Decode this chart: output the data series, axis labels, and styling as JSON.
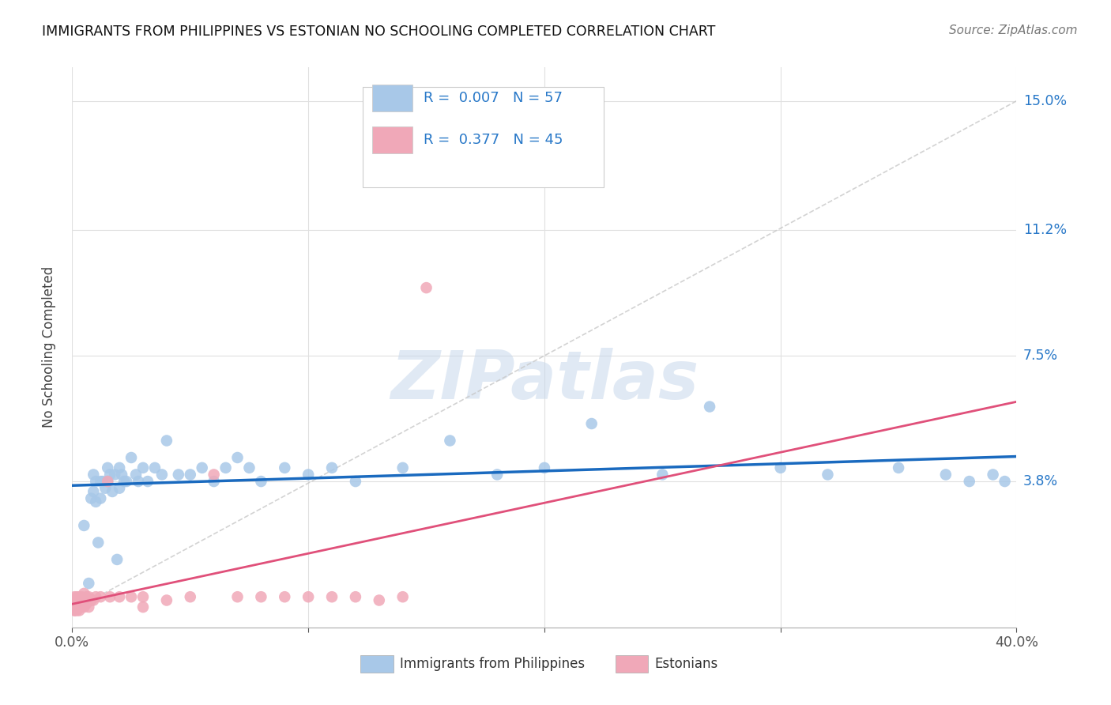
{
  "title": "IMMIGRANTS FROM PHILIPPINES VS ESTONIAN NO SCHOOLING COMPLETED CORRELATION CHART",
  "source": "Source: ZipAtlas.com",
  "ylabel": "No Schooling Completed",
  "xlim": [
    0.0,
    0.4
  ],
  "ylim": [
    -0.005,
    0.16
  ],
  "ytick_values": [
    0.038,
    0.075,
    0.112,
    0.15
  ],
  "ytick_labels": [
    "3.8%",
    "7.5%",
    "11.2%",
    "15.0%"
  ],
  "blue_R": "0.007",
  "blue_N": "57",
  "pink_R": "0.377",
  "pink_N": "45",
  "blue_dot_color": "#a8c8e8",
  "pink_dot_color": "#f0a8b8",
  "blue_line_color": "#1a6abf",
  "pink_line_color": "#e0507a",
  "diag_color": "#cccccc",
  "watermark": "ZIPatlas",
  "background": "#ffffff",
  "grid_color": "#e0e0e0",
  "blue_x": [
    0.005,
    0.007,
    0.008,
    0.009,
    0.009,
    0.01,
    0.01,
    0.011,
    0.012,
    0.012,
    0.013,
    0.014,
    0.015,
    0.015,
    0.016,
    0.017,
    0.018,
    0.019,
    0.02,
    0.02,
    0.021,
    0.022,
    0.023,
    0.025,
    0.027,
    0.028,
    0.03,
    0.032,
    0.035,
    0.038,
    0.04,
    0.045,
    0.05,
    0.055,
    0.06,
    0.065,
    0.07,
    0.075,
    0.08,
    0.09,
    0.1,
    0.11,
    0.12,
    0.14,
    0.16,
    0.18,
    0.2,
    0.22,
    0.25,
    0.27,
    0.3,
    0.32,
    0.35,
    0.37,
    0.38,
    0.39,
    0.395
  ],
  "blue_y": [
    0.025,
    0.008,
    0.033,
    0.04,
    0.035,
    0.038,
    0.032,
    0.02,
    0.038,
    0.033,
    0.038,
    0.036,
    0.042,
    0.038,
    0.04,
    0.035,
    0.04,
    0.015,
    0.042,
    0.036,
    0.04,
    0.038,
    0.038,
    0.045,
    0.04,
    0.038,
    0.042,
    0.038,
    0.042,
    0.04,
    0.05,
    0.04,
    0.04,
    0.042,
    0.038,
    0.042,
    0.045,
    0.042,
    0.038,
    0.042,
    0.04,
    0.042,
    0.038,
    0.042,
    0.05,
    0.04,
    0.042,
    0.055,
    0.04,
    0.06,
    0.042,
    0.04,
    0.042,
    0.04,
    0.038,
    0.04,
    0.038
  ],
  "pink_x": [
    0.001,
    0.001,
    0.001,
    0.001,
    0.001,
    0.001,
    0.001,
    0.002,
    0.002,
    0.002,
    0.002,
    0.003,
    0.003,
    0.003,
    0.004,
    0.004,
    0.005,
    0.005,
    0.005,
    0.006,
    0.006,
    0.007,
    0.007,
    0.008,
    0.009,
    0.01,
    0.012,
    0.015,
    0.016,
    0.02,
    0.025,
    0.03,
    0.03,
    0.04,
    0.05,
    0.06,
    0.07,
    0.08,
    0.09,
    0.1,
    0.11,
    0.12,
    0.13,
    0.14,
    0.15
  ],
  "pink_y": [
    0.004,
    0.003,
    0.002,
    0.001,
    0.001,
    0.0,
    0.0,
    0.004,
    0.003,
    0.001,
    0.0,
    0.004,
    0.002,
    0.0,
    0.004,
    0.001,
    0.005,
    0.003,
    0.001,
    0.004,
    0.002,
    0.004,
    0.001,
    0.003,
    0.003,
    0.004,
    0.004,
    0.038,
    0.004,
    0.004,
    0.004,
    0.004,
    0.001,
    0.003,
    0.004,
    0.04,
    0.004,
    0.004,
    0.004,
    0.004,
    0.004,
    0.004,
    0.003,
    0.004,
    0.095
  ]
}
